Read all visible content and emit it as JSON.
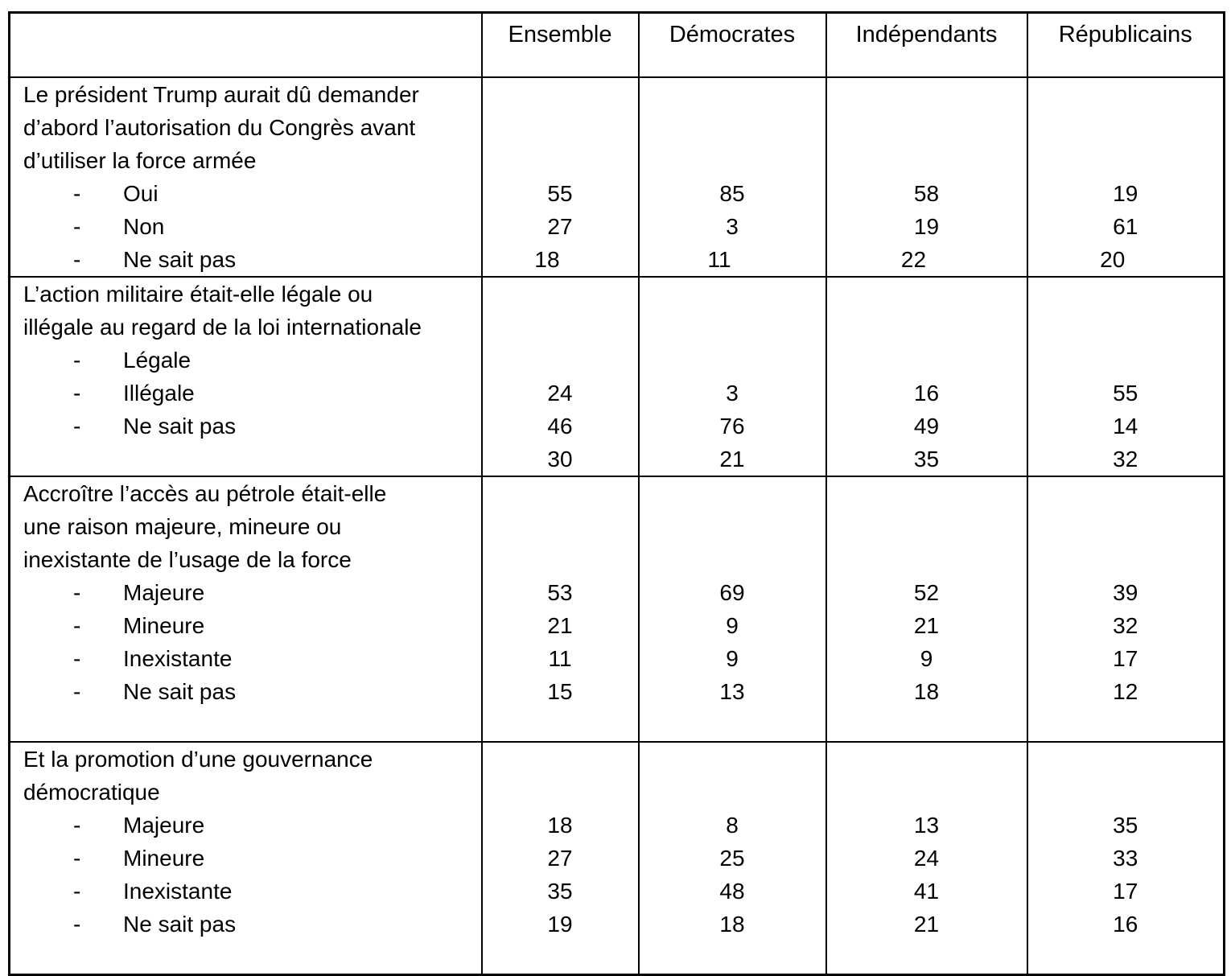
{
  "table": {
    "columns": [
      {
        "label": ""
      },
      {
        "label": "Ensemble"
      },
      {
        "label": "Démocrates"
      },
      {
        "label": "Indépendants"
      },
      {
        "label": "Républicains"
      }
    ],
    "questions": [
      {
        "lines": [
          "Le président Trump aurait dû demander",
          "d’abord l’autorisation du Congrès avant",
          "d’utiliser la force armée"
        ],
        "rows": [
          {
            "label": "Oui",
            "values": [
              "55",
              "85",
              "58",
              "19"
            ]
          },
          {
            "label": "Non",
            "values": [
              "27",
              "3",
              "19",
              "61"
            ]
          },
          {
            "label": "Ne sait pas",
            "values": [
              "18",
              "11",
              "22",
              "20"
            ],
            "shifted": true
          }
        ],
        "trailing_blank": 0
      },
      {
        "lines": [
          "L’action militaire était-elle légale ou",
          "illégale au regard de la loi internationale"
        ],
        "rows": [
          {
            "label": "Légale",
            "values": [
              "",
              "",
              "",
              ""
            ]
          },
          {
            "label": "Illégale",
            "values": [
              "24",
              "3",
              "16",
              "55"
            ]
          },
          {
            "label": "Ne sait pas",
            "values": [
              "46",
              "76",
              "49",
              "14"
            ]
          },
          {
            "label": "",
            "values": [
              "30",
              "21",
              "35",
              "32"
            ]
          }
        ],
        "trailing_blank": 0
      },
      {
        "lines": [
          "Accroître l’accès au pétrole était-elle",
          "une raison majeure, mineure ou",
          "inexistante de l’usage de la force"
        ],
        "rows": [
          {
            "label": "Majeure",
            "values": [
              "53",
              "69",
              "52",
              "39"
            ]
          },
          {
            "label": "Mineure",
            "values": [
              "21",
              "9",
              "21",
              "32"
            ]
          },
          {
            "label": "Inexistante",
            "values": [
              "11",
              "9",
              "9",
              "17"
            ]
          },
          {
            "label": "Ne sait pas",
            "values": [
              "15",
              "13",
              "18",
              "12"
            ]
          }
        ],
        "trailing_blank": 1
      },
      {
        "lines": [
          "Et la promotion d’une gouvernance",
          "démocratique"
        ],
        "rows": [
          {
            "label": "Majeure",
            "values": [
              "18",
              "8",
              "13",
              "35"
            ]
          },
          {
            "label": "Mineure",
            "values": [
              "27",
              "25",
              "24",
              "33"
            ]
          },
          {
            "label": "Inexistante",
            "values": [
              "35",
              "48",
              "41",
              "17"
            ]
          },
          {
            "label": "Ne sait pas",
            "values": [
              "19",
              "18",
              "21",
              "16"
            ]
          }
        ],
        "trailing_blank": 1
      }
    ]
  }
}
